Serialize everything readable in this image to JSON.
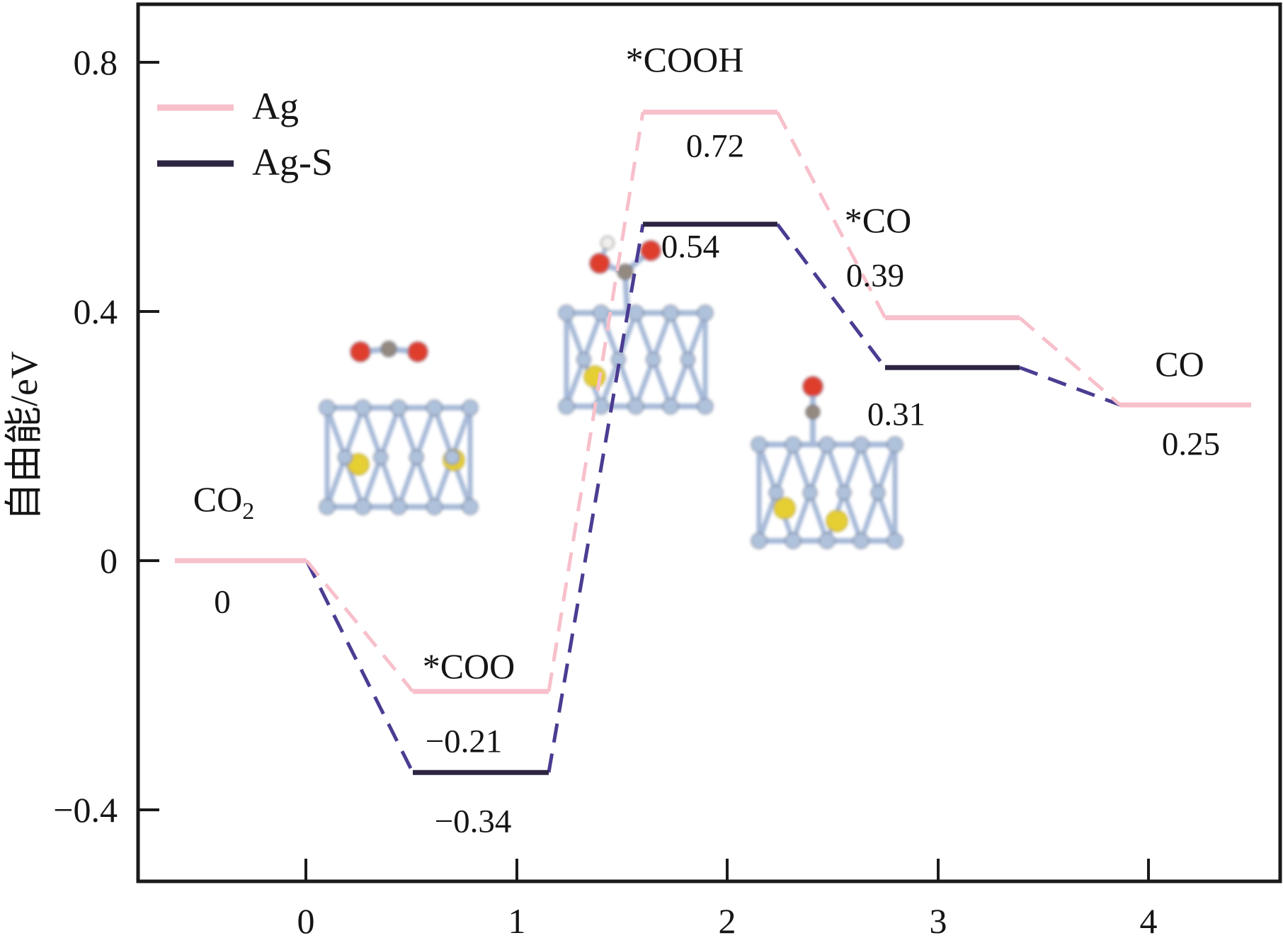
{
  "chart_data": {
    "type": "line",
    "variant": "reaction-free-energy-diagram",
    "title": "",
    "xlabel": "",
    "ylabel": "自由能/eV",
    "ylim": [
      -0.52,
      0.9
    ],
    "grid": false,
    "x_ticks": [
      "0",
      "1",
      "2",
      "3",
      "4"
    ],
    "y_ticks": [
      {
        "label": "0.8",
        "value": 0.8
      },
      {
        "label": "0.4",
        "value": 0.4
      },
      {
        "label": "0",
        "value": 0
      },
      {
        "label": "−0.4",
        "value": -0.4
      }
    ],
    "legend": {
      "position": "top-left",
      "entries": [
        {
          "label": "Ag",
          "color": "#f7c0cb"
        },
        {
          "label": "Ag-S",
          "color": "#2e2543"
        }
      ]
    },
    "states": [
      {
        "id": "co2",
        "label": "CO",
        "label_sub": "2",
        "x": 0
      },
      {
        "id": "coo",
        "label": "*COO",
        "x": 1
      },
      {
        "id": "cooh",
        "label": "*COOH",
        "x": 2
      },
      {
        "id": "coads",
        "label": "*CO",
        "x": 3
      },
      {
        "id": "co",
        "label": "CO",
        "x": 4
      }
    ],
    "series": [
      {
        "name": "Ag",
        "color": "#f7c0cb",
        "connector_color": "#f7c0cb",
        "values": [
          0,
          -0.21,
          0.72,
          0.39,
          0.25
        ]
      },
      {
        "name": "Ag-S",
        "color": "#2e2543",
        "connector_color": "#4b3c92",
        "values": [
          0,
          -0.34,
          0.54,
          0.31,
          0.25
        ]
      }
    ],
    "value_labels": {
      "co2": "0",
      "coo_ag": "−0.21",
      "coo_ags": "−0.34",
      "cooh_ag": "0.72",
      "cooh_ags": "0.54",
      "coads_ag": "0.39",
      "coads_ags": "0.31",
      "co": "0.25"
    },
    "insets": [
      {
        "state": "coo",
        "icon": "co2-on-slab-structure"
      },
      {
        "state": "cooh",
        "icon": "cooh-on-slab-structure"
      },
      {
        "state": "coads",
        "icon": "co-on-slab-structure"
      }
    ]
  }
}
